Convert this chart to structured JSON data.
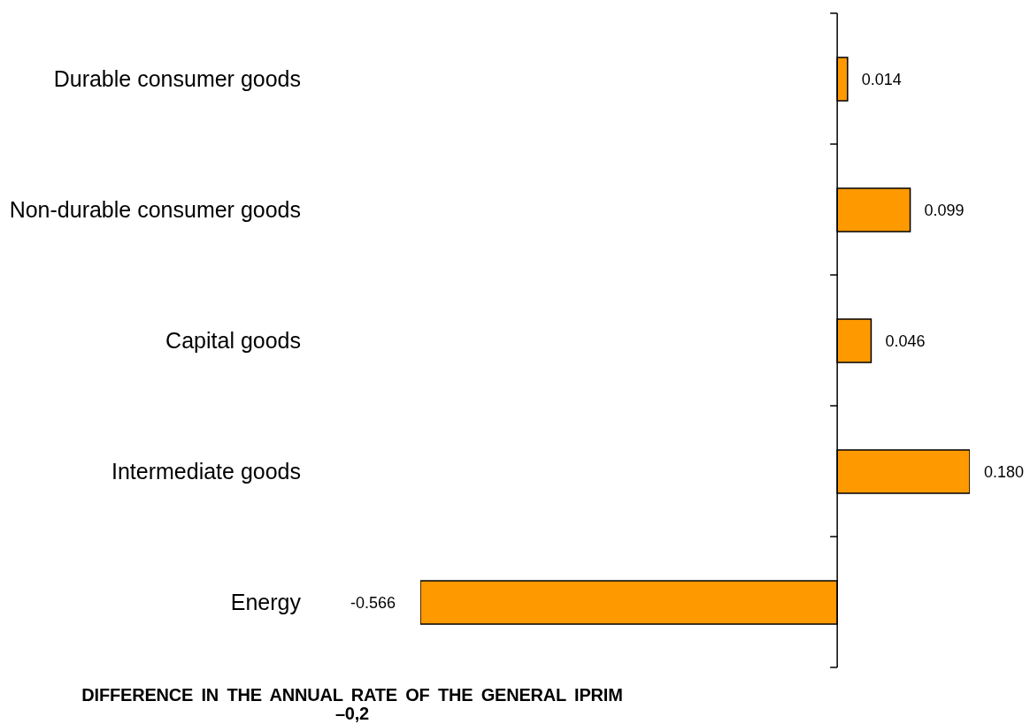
{
  "chart_data": {
    "type": "bar",
    "orientation": "horizontal",
    "categories": [
      "Durable consumer goods",
      "Non-durable consumer goods",
      "Capital goods",
      "Intermediate goods",
      "Energy"
    ],
    "values": [
      0.014,
      0.099,
      0.046,
      0.18,
      -0.566
    ],
    "color": "#ff9900",
    "value_labels": [
      "0.014",
      "0.099",
      "0.046",
      "0.180",
      "-0.566"
    ],
    "annotations": [
      "DIFFERENCE IN THE ANNUAL RATE OF THE GENERAL IPRIM",
      "–0,2"
    ]
  }
}
